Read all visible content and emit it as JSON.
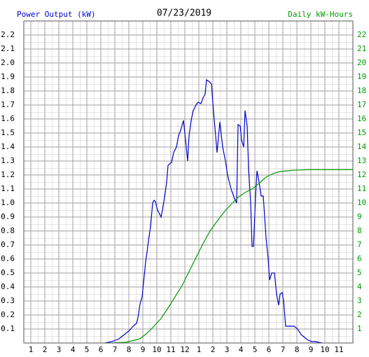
{
  "chart_data": {
    "type": "line",
    "title": "07/23/2019",
    "ylabel": "Power Output (kW)",
    "y2label": "Daily kW-Hours",
    "xlim": [
      0.5,
      24
    ],
    "xticks": [
      1,
      2,
      3,
      4,
      5,
      6,
      7,
      8,
      9,
      10,
      11,
      12,
      {
        "value": 13,
        "label": "1"
      },
      {
        "value": 14,
        "label": "2"
      },
      {
        "value": 15,
        "label": "3"
      },
      {
        "value": 16,
        "label": "4"
      },
      {
        "value": 17,
        "label": "5"
      },
      {
        "value": 18,
        "label": "6"
      },
      {
        "value": 19,
        "label": "7"
      },
      {
        "value": 20,
        "label": "8"
      },
      {
        "value": 21,
        "label": "9"
      },
      {
        "value": 22,
        "label": "10"
      },
      {
        "value": 23,
        "label": "11"
      }
    ],
    "ylim": [
      0,
      2.3
    ],
    "yticks": [
      0.1,
      0.2,
      0.3,
      0.4,
      0.5,
      0.6,
      0.7,
      0.8,
      0.9,
      {
        "value": 1,
        "label": "1.0"
      },
      1.1,
      1.2,
      1.3,
      1.4,
      1.5,
      1.6,
      1.7,
      1.8,
      1.9,
      {
        "value": 2,
        "label": "2.0"
      },
      2.1,
      2.2
    ],
    "y2lim": [
      0,
      23
    ],
    "y2ticks": [
      1,
      2,
      3,
      4,
      5,
      6,
      7,
      8,
      9,
      10,
      11,
      12,
      13,
      14,
      15,
      16,
      17,
      18,
      19,
      20,
      21,
      22
    ],
    "grid": true,
    "series": [
      {
        "color": "#0000cc",
        "x": [
          6.3,
          6.8,
          7.05,
          7.3,
          7.55,
          7.8,
          8.05,
          8.3,
          8.55,
          8.65,
          8.8,
          8.95,
          9.05,
          9.2,
          9.3,
          9.4,
          9.55,
          9.7,
          9.8,
          9.9,
          10.05,
          10.3,
          10.4,
          10.55,
          10.7,
          10.8,
          11.05,
          11.2,
          11.4,
          11.55,
          11.7,
          11.9,
          12.05,
          12.2,
          12.3,
          12.45,
          12.6,
          12.8,
          12.95,
          13.15,
          13.3,
          13.45,
          13.55,
          13.7,
          13.9,
          14.05,
          14.2,
          14.3,
          14.5,
          14.7,
          14.9,
          15.05,
          15.3,
          15.55,
          15.7,
          15.8,
          15.95,
          16.05,
          16.2,
          16.3,
          16.45,
          16.55,
          16.7,
          16.8,
          16.9,
          17.05,
          17.15,
          17.3,
          17.45,
          17.6,
          17.7,
          17.8,
          17.95,
          18.05,
          18.2,
          18.4,
          18.55,
          18.7,
          18.8,
          18.95,
          19.05,
          19.2,
          19.8,
          20.05,
          20.3,
          20.55,
          20.8,
          21.05,
          21.3,
          21.8
        ],
        "values": [
          0,
          0.01,
          0.02,
          0.03,
          0.05,
          0.07,
          0.09,
          0.12,
          0.14,
          0.18,
          0.28,
          0.33,
          0.43,
          0.58,
          0.65,
          0.73,
          0.83,
          1.0,
          1.02,
          1.01,
          0.95,
          0.9,
          0.95,
          1.04,
          1.15,
          1.27,
          1.29,
          1.36,
          1.4,
          1.48,
          1.52,
          1.59,
          1.45,
          1.3,
          1.48,
          1.59,
          1.66,
          1.7,
          1.72,
          1.71,
          1.75,
          1.78,
          1.88,
          1.87,
          1.85,
          1.65,
          1.48,
          1.36,
          1.58,
          1.4,
          1.3,
          1.2,
          1.1,
          1.03,
          1.0,
          1.56,
          1.55,
          1.45,
          1.4,
          1.66,
          1.55,
          1.25,
          1.0,
          0.69,
          0.69,
          1.05,
          1.23,
          1.15,
          1.05,
          1.05,
          0.9,
          0.75,
          0.6,
          0.45,
          0.5,
          0.5,
          0.35,
          0.27,
          0.35,
          0.36,
          0.3,
          0.12,
          0.12,
          0.1,
          0.06,
          0.04,
          0.02,
          0.01,
          0.01,
          0
        ]
      },
      {
        "color": "#009900",
        "axis": "y2",
        "x": [
          6.8,
          7.8,
          8.8,
          9.3,
          9.8,
          10.3,
          10.8,
          11.3,
          11.8,
          12.3,
          12.8,
          13.3,
          13.8,
          14.3,
          14.8,
          15.3,
          15.8,
          16.3,
          16.8,
          17.3,
          17.8,
          18.3,
          18.8,
          19.3,
          19.8,
          20.8,
          24
        ],
        "values": [
          0,
          0.05,
          0.3,
          0.7,
          1.2,
          1.75,
          2.5,
          3.3,
          4.1,
          5.1,
          6.1,
          7.1,
          8,
          8.7,
          9.35,
          9.9,
          10.4,
          10.75,
          11,
          11.4,
          11.85,
          12.1,
          12.25,
          12.3,
          12.35,
          12.38,
          12.38
        ]
      }
    ]
  }
}
